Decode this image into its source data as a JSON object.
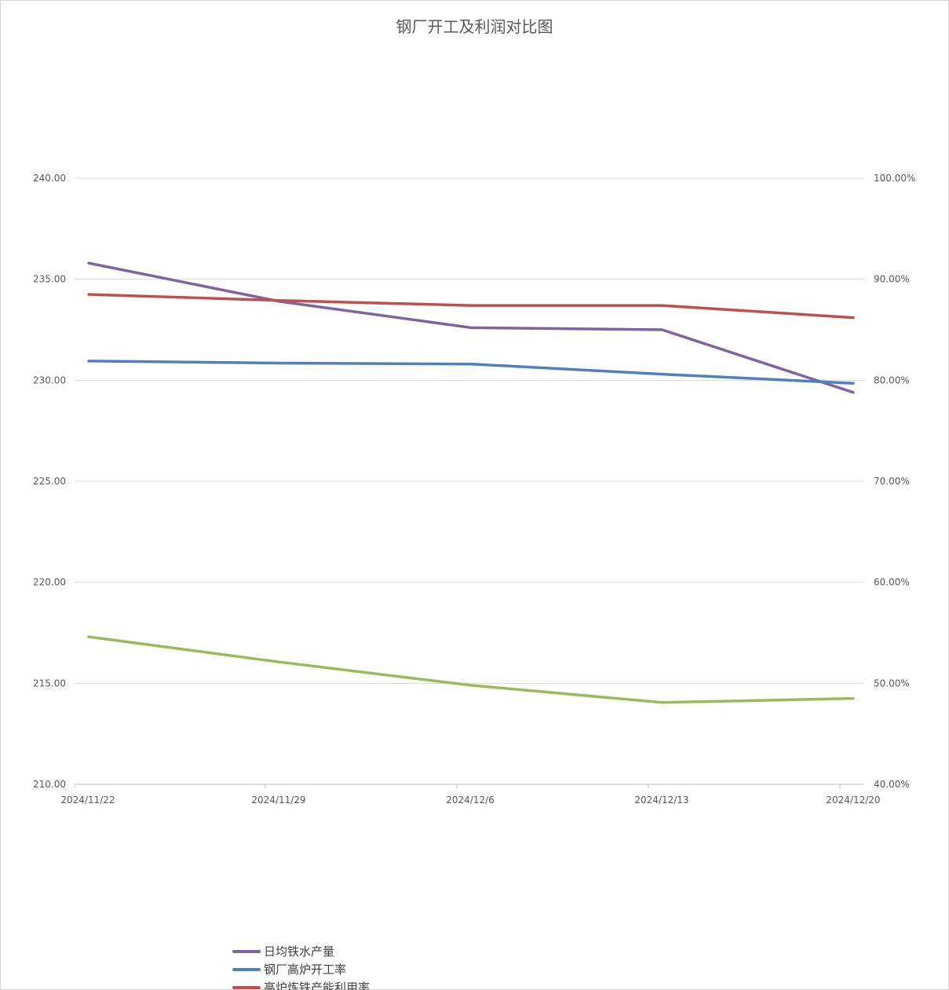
{
  "chart_data": {
    "type": "line",
    "title": "钢厂开工及利润对比图",
    "categories": [
      "2024/11/22",
      "2024/11/29",
      "2024/12/6",
      "2024/12/13",
      "2024/12/20"
    ],
    "y_left": {
      "min": 210,
      "max": 240,
      "step": 5,
      "tick_labels": [
        "210.00",
        "215.00",
        "220.00",
        "225.00",
        "230.00",
        "235.00",
        "240.00"
      ]
    },
    "y_right": {
      "min": 0.4,
      "max": 1.0,
      "step": 0.1,
      "tick_labels": [
        "40.00%",
        "50.00%",
        "60.00%",
        "70.00%",
        "80.00%",
        "90.00%",
        "100.00%"
      ]
    },
    "grid": true,
    "legend_position": "bottom-left",
    "series": [
      {
        "name": "日均铁水产量",
        "color": "#8064a2",
        "axis": "left",
        "values": [
          235.8,
          233.9,
          232.6,
          232.5,
          229.4
        ]
      },
      {
        "name": "钢厂高炉开工率",
        "color": "#4f81bd",
        "axis": "right",
        "values": [
          0.819,
          0.817,
          0.816,
          0.806,
          0.797
        ]
      },
      {
        "name": "高炉炼铁产能利用率",
        "color": "#c0504d",
        "axis": "right",
        "values": [
          0.885,
          0.879,
          0.874,
          0.874,
          0.862
        ]
      },
      {
        "name": "",
        "color": "#9bbb59",
        "axis": "right",
        "values": [
          0.546,
          0.521,
          0.498,
          0.481,
          0.485
        ]
      }
    ]
  }
}
